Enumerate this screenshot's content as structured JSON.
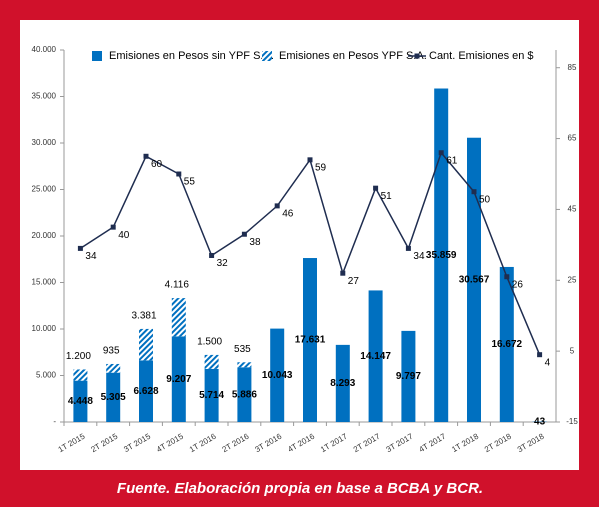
{
  "chart_data": {
    "type": "bar-line",
    "categories": [
      "1T 2015",
      "2T 2015",
      "3T 2015",
      "4T 2015",
      "1T 2016",
      "2T 2016",
      "3T 2016",
      "4T 2016",
      "1T 2017",
      "2T 2017",
      "3T 2017",
      "4T 2017",
      "1T 2018",
      "2T 2018",
      "3T 2018"
    ],
    "series": [
      {
        "name": "Emisiones en Pesos sin YPF S.A.",
        "color": "#0070c0",
        "type": "bar",
        "values": [
          4448,
          5305,
          6628,
          9207,
          5714,
          5886,
          10043,
          17631,
          8293,
          14147,
          9797,
          35859,
          30567,
          16672,
          43
        ],
        "value_labels": [
          "4.448",
          "5.305",
          "6.628",
          "9.207",
          "5.714",
          "5.886",
          "10.043",
          "17.631",
          "8.293",
          "14.147",
          "9.797",
          "35.859",
          "30.567",
          "16.672",
          "43"
        ]
      },
      {
        "name": "Emisiones en Pesos YPF S.A.",
        "color": "#0070c0",
        "type": "bar",
        "pattern": "hatch",
        "values": [
          1200,
          935,
          3381,
          4116,
          1500,
          535,
          null,
          null,
          null,
          null,
          null,
          null,
          null,
          null,
          null
        ],
        "value_labels": [
          "1.200",
          "935",
          "3.381",
          "4.116",
          "1.500",
          "535",
          null,
          null,
          null,
          null,
          null,
          null,
          null,
          null,
          null
        ]
      },
      {
        "name": "Cant. Emisiones en $",
        "color": "#1f2d50",
        "type": "line",
        "axis": "y2",
        "values": [
          34,
          40,
          60,
          55,
          32,
          38,
          46,
          59,
          27,
          51,
          34,
          61,
          50,
          26,
          4
        ]
      }
    ],
    "stacked": true,
    "ylim": [
      0,
      40000
    ],
    "yticks": [
      {
        "value": 0,
        "label": "-"
      },
      {
        "value": 5000,
        "label": "5.000"
      },
      {
        "value": 10000,
        "label": "10.000"
      },
      {
        "value": 15000,
        "label": "15.000"
      },
      {
        "value": 20000,
        "label": "20.000"
      },
      {
        "value": 25000,
        "label": "25.000"
      },
      {
        "value": 30000,
        "label": "30.000"
      },
      {
        "value": 35000,
        "label": "35.000"
      },
      {
        "value": 40000,
        "label": "40.000"
      }
    ],
    "y2lim": [
      -15,
      90
    ],
    "y2ticks": [
      -15,
      5,
      25,
      45,
      65,
      85
    ],
    "grid": false,
    "legend": "top",
    "source": "Fuente. Elaboración propia en base a BCBA y BCR."
  }
}
